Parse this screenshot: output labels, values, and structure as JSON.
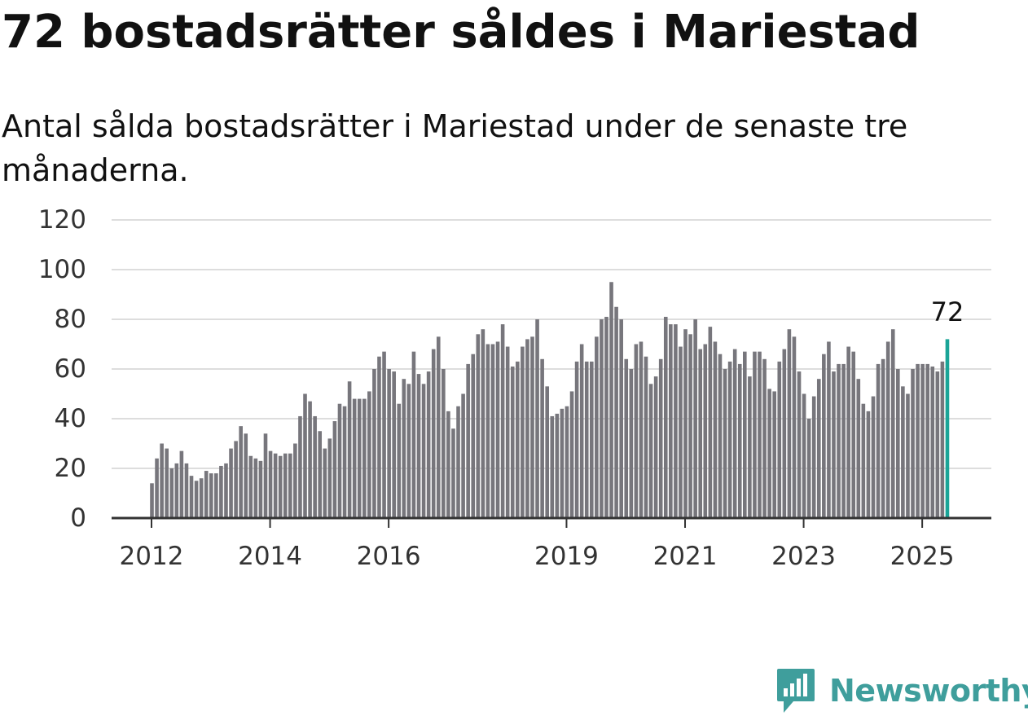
{
  "header": {
    "title": "72 bostadsrätter såldes i Mariestad",
    "subtitle": "Antal sålda bostadsrätter i Mariestad under de senaste tre månaderna."
  },
  "brand": {
    "name": "Newsworthy",
    "logo_icon": "newsworthy-chart-bubble-logo"
  },
  "colors": {
    "bar": "#77767c",
    "highlight": "#1aa497",
    "grid": "#dddddd",
    "axis": "#333333",
    "text": "#111111",
    "brand": "#3f9e9c"
  },
  "chart_data": {
    "type": "bar",
    "title": "",
    "xlabel": "",
    "ylabel": "",
    "ylim": [
      0,
      120
    ],
    "yticks": [
      "0",
      "20",
      "40",
      "60",
      "80",
      "100",
      "120"
    ],
    "xticks": [
      {
        "label": "2012",
        "index": 0
      },
      {
        "label": "2014",
        "index": 24
      },
      {
        "label": "2016",
        "index": 48
      },
      {
        "label": "2019",
        "index": 84
      },
      {
        "label": "2021",
        "index": 108
      },
      {
        "label": "2023",
        "index": 132
      },
      {
        "label": "2025",
        "index": 156
      }
    ],
    "grid": true,
    "legend": "none",
    "highlight": {
      "index": 161,
      "label": "72"
    },
    "categories": [
      "2012-01",
      "2012-02",
      "2012-03",
      "2012-04",
      "2012-05",
      "2012-06",
      "2012-07",
      "2012-08",
      "2012-09",
      "2012-10",
      "2012-11",
      "2012-12",
      "2013-01",
      "2013-02",
      "2013-03",
      "2013-04",
      "2013-05",
      "2013-06",
      "2013-07",
      "2013-08",
      "2013-09",
      "2013-10",
      "2013-11",
      "2013-12",
      "2014-01",
      "2014-02",
      "2014-03",
      "2014-04",
      "2014-05",
      "2014-06",
      "2014-07",
      "2014-08",
      "2014-09",
      "2014-10",
      "2014-11",
      "2014-12",
      "2015-01",
      "2015-02",
      "2015-03",
      "2015-04",
      "2015-05",
      "2015-06",
      "2015-07",
      "2015-08",
      "2015-09",
      "2015-10",
      "2015-11",
      "2015-12",
      "2016-01",
      "2016-02",
      "2016-03",
      "2016-04",
      "2016-05",
      "2016-06",
      "2016-07",
      "2016-08",
      "2016-09",
      "2016-10",
      "2016-11",
      "2016-12",
      "2017-01",
      "2017-02",
      "2017-03",
      "2017-04",
      "2017-05",
      "2017-06",
      "2017-07",
      "2017-08",
      "2017-09",
      "2017-10",
      "2017-11",
      "2017-12",
      "2018-01",
      "2018-02",
      "2018-03",
      "2018-04",
      "2018-05",
      "2018-06",
      "2018-07",
      "2018-08",
      "2018-09",
      "2018-10",
      "2018-11",
      "2018-12",
      "2019-01",
      "2019-02",
      "2019-03",
      "2019-04",
      "2019-05",
      "2019-06",
      "2019-07",
      "2019-08",
      "2019-09",
      "2019-10",
      "2019-11",
      "2019-12",
      "2020-01",
      "2020-02",
      "2020-03",
      "2020-04",
      "2020-05",
      "2020-06",
      "2020-07",
      "2020-08",
      "2020-09",
      "2020-10",
      "2020-11",
      "2020-12",
      "2021-01",
      "2021-02",
      "2021-03",
      "2021-04",
      "2021-05",
      "2021-06",
      "2021-07",
      "2021-08",
      "2021-09",
      "2021-10",
      "2021-11",
      "2021-12",
      "2022-01",
      "2022-02",
      "2022-03",
      "2022-04",
      "2022-05",
      "2022-06",
      "2022-07",
      "2022-08",
      "2022-09",
      "2022-10",
      "2022-11",
      "2022-12",
      "2023-01",
      "2023-02",
      "2023-03",
      "2023-04",
      "2023-05",
      "2023-06",
      "2023-07",
      "2023-08",
      "2023-09",
      "2023-10",
      "2023-11",
      "2023-12",
      "2024-01",
      "2024-02",
      "2024-03",
      "2024-04",
      "2024-05",
      "2024-06",
      "2024-07",
      "2024-08",
      "2024-09",
      "2024-10",
      "2024-11",
      "2024-12",
      "2025-01",
      "2025-02",
      "2025-03",
      "2025-04",
      "2025-05",
      "2025-06"
    ],
    "values": [
      14,
      24,
      30,
      28,
      20,
      22,
      27,
      22,
      17,
      15,
      16,
      19,
      18,
      18,
      21,
      22,
      28,
      31,
      37,
      34,
      25,
      24,
      23,
      34,
      27,
      26,
      25,
      26,
      26,
      30,
      41,
      50,
      47,
      41,
      35,
      28,
      32,
      39,
      46,
      45,
      55,
      48,
      48,
      48,
      51,
      60,
      65,
      67,
      60,
      59,
      46,
      56,
      54,
      67,
      58,
      54,
      59,
      68,
      73,
      60,
      43,
      36,
      45,
      50,
      62,
      66,
      74,
      76,
      70,
      70,
      71,
      78,
      69,
      61,
      63,
      69,
      72,
      73,
      80,
      64,
      53,
      41,
      42,
      44,
      45,
      51,
      63,
      70,
      63,
      63,
      73,
      80,
      81,
      95,
      85,
      80,
      64,
      60,
      70,
      71,
      65,
      54,
      57,
      64,
      81,
      78,
      78,
      69,
      76,
      74,
      80,
      68,
      70,
      77,
      71,
      66,
      60,
      63,
      68,
      62,
      67,
      57,
      67,
      67,
      64,
      52,
      51,
      63,
      68,
      76,
      73,
      59,
      50,
      40,
      49,
      56,
      66,
      71,
      59,
      62,
      62,
      69,
      67,
      56,
      46,
      43,
      49,
      62,
      64,
      71,
      76,
      60,
      53,
      50,
      60,
      62,
      62,
      62,
      61,
      59,
      63,
      72
    ]
  }
}
